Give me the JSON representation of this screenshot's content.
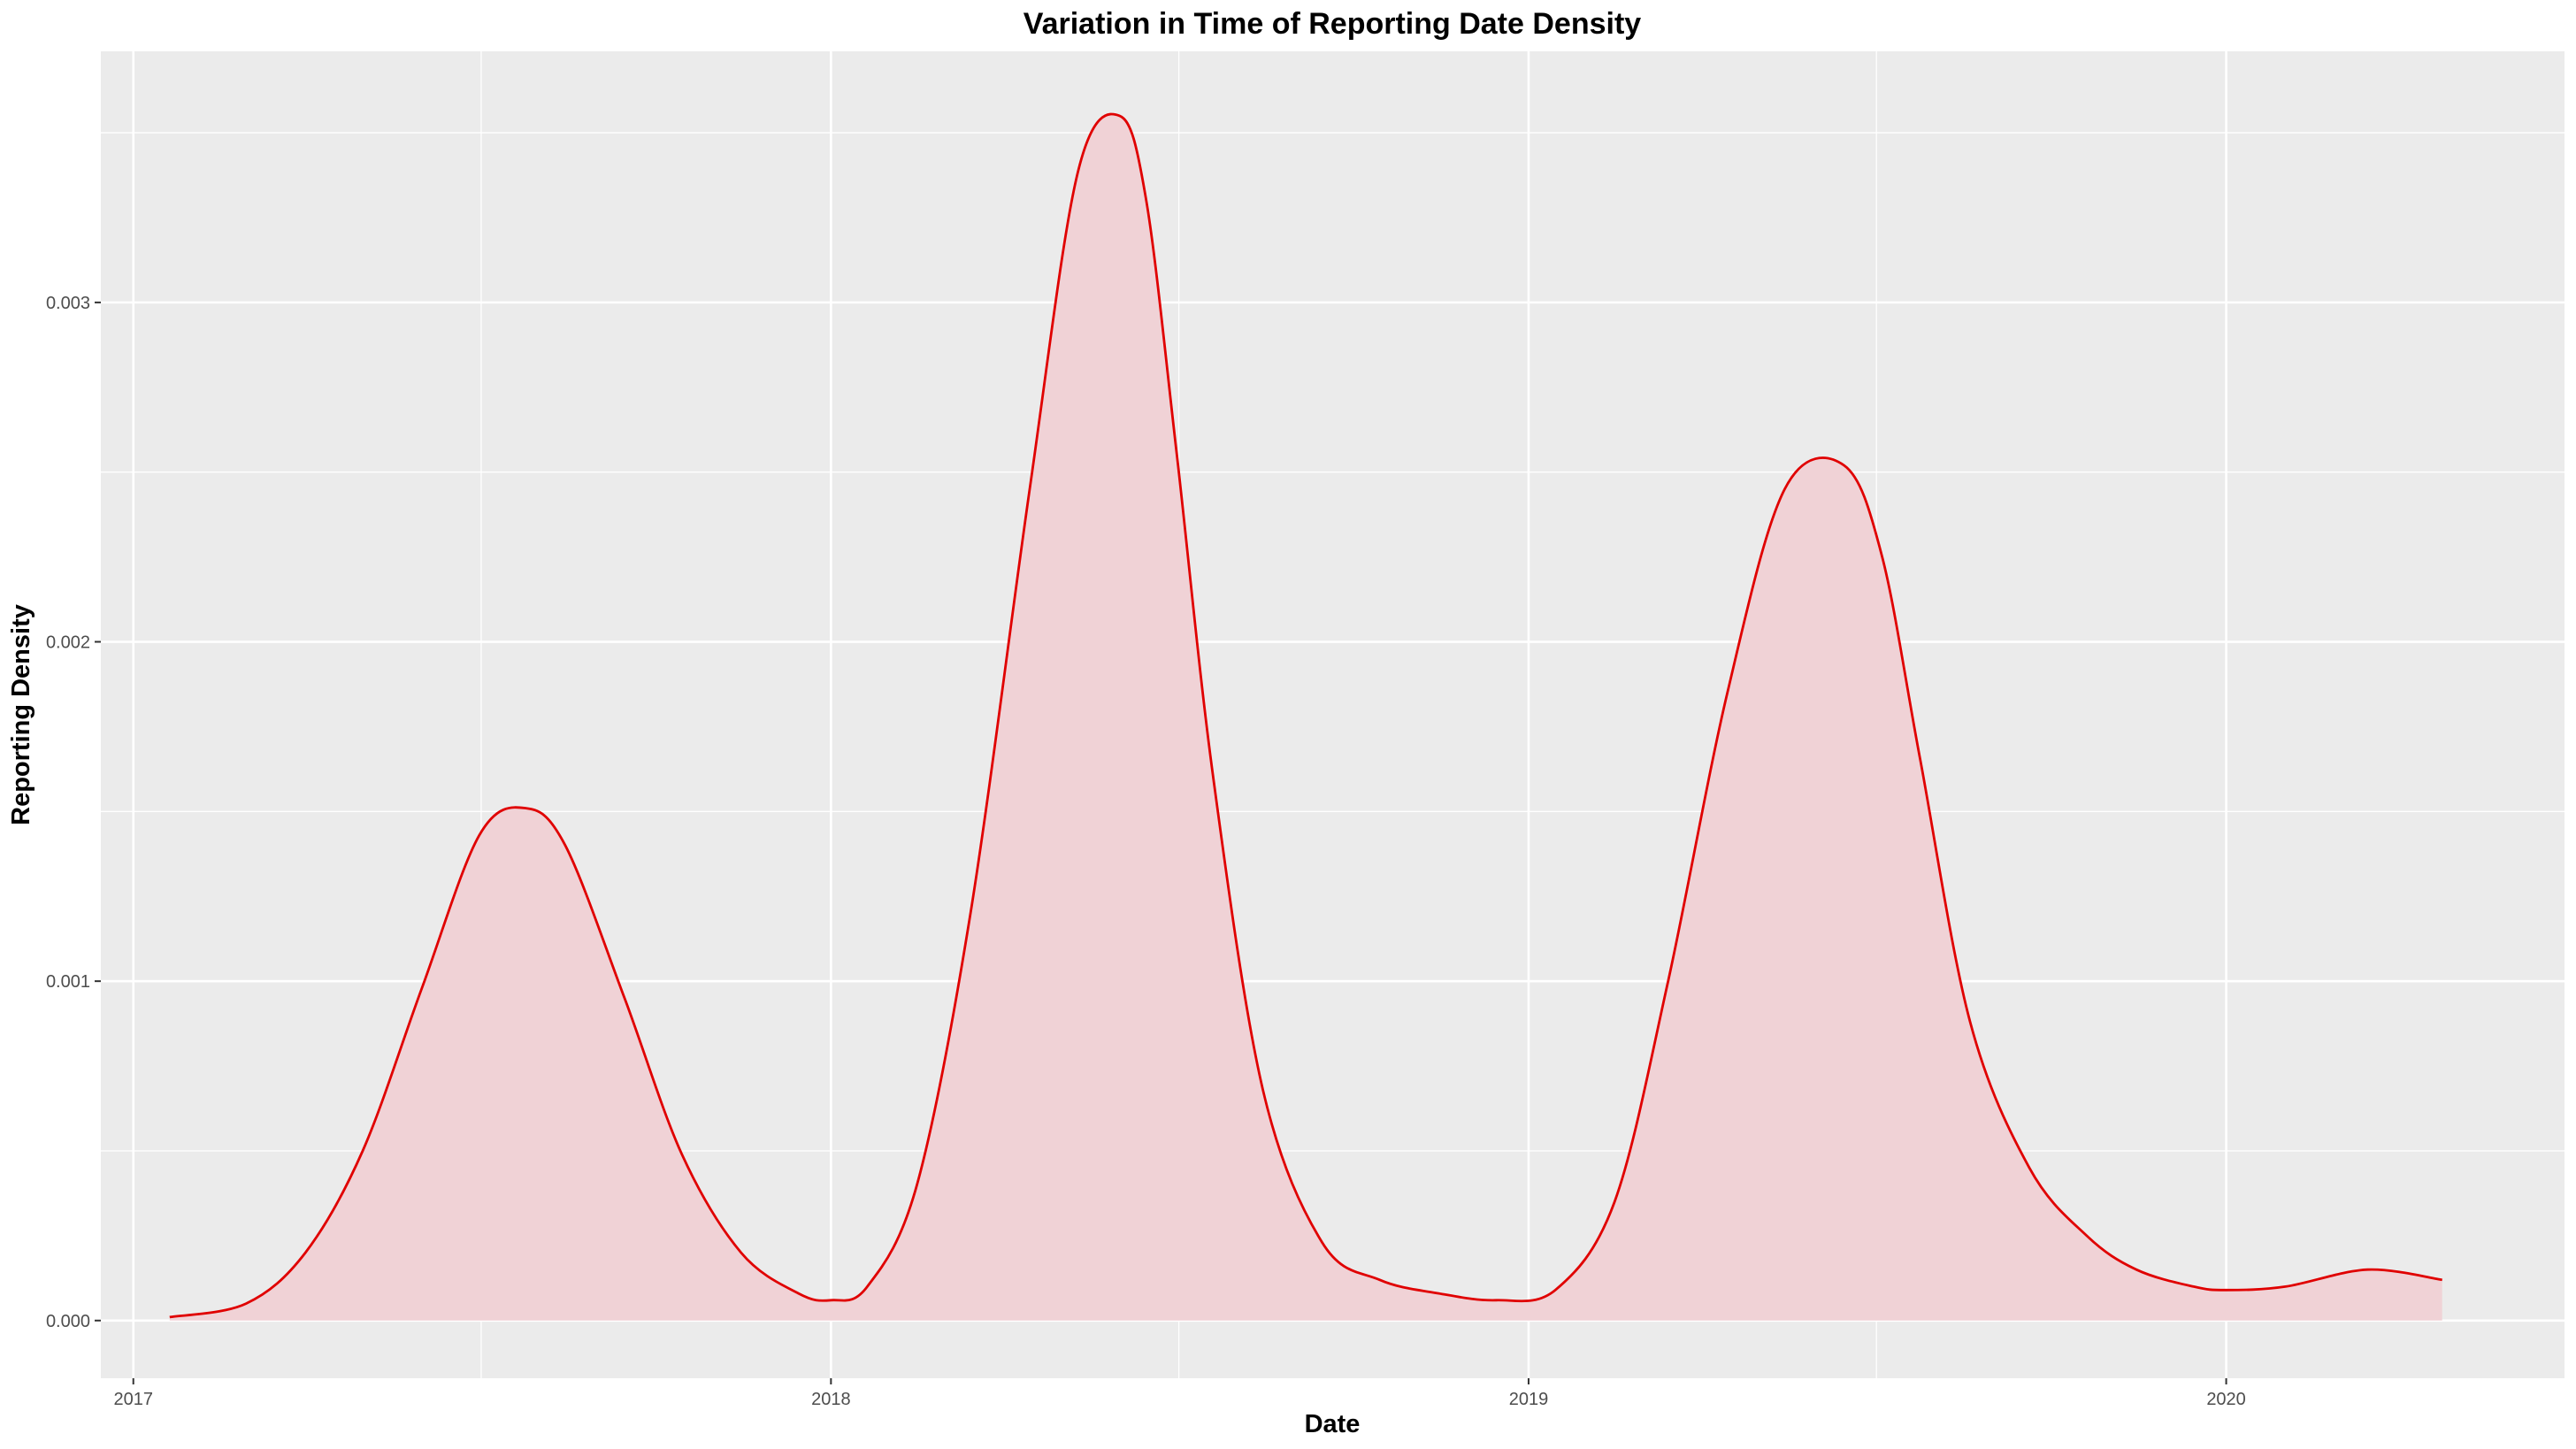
{
  "chart_data": {
    "type": "area",
    "title": "Variation in Time of Reporting Date Density",
    "xlabel": "Date",
    "ylabel": "Reporting Density",
    "x_ticks": [
      "2017",
      "2018",
      "2019",
      "2020"
    ],
    "y_ticks": [
      "0.000",
      "0.001",
      "0.002",
      "0.003"
    ],
    "xlim": [
      "2016-12-15",
      "2020-06-26"
    ],
    "ylim": [
      -0.00017,
      0.00374
    ],
    "grid": true,
    "colors": {
      "line": "#e00000",
      "fill": "#f0d2d6",
      "panel": "#ebebeb",
      "grid": "#ffffff"
    },
    "series": [
      {
        "x": [
          "2017-01-20",
          "2017-03-01",
          "2017-04-01",
          "2017-05-01",
          "2017-06-01",
          "2017-07-01",
          "2017-07-25",
          "2017-08-15",
          "2017-09-15",
          "2017-10-15",
          "2017-11-15",
          "2017-12-15",
          "2018-01-01",
          "2018-01-20",
          "2018-02-15",
          "2018-03-15",
          "2018-04-15",
          "2018-05-10",
          "2018-06-01",
          "2018-06-15",
          "2018-07-01",
          "2018-07-20",
          "2018-08-15",
          "2018-09-15",
          "2018-10-15",
          "2018-11-15",
          "2018-12-15",
          "2019-01-15",
          "2019-02-15",
          "2019-03-15",
          "2019-04-15",
          "2019-05-15",
          "2019-06-15",
          "2019-07-05",
          "2019-07-25",
          "2019-08-20",
          "2019-09-20",
          "2019-10-20",
          "2019-11-15",
          "2019-12-15",
          "2020-01-01",
          "2020-02-01",
          "2020-03-15",
          "2020-04-23"
        ],
        "y": [
          1e-05,
          5e-05,
          0.0002,
          0.0005,
          0.00098,
          0.00143,
          0.00151,
          0.0014,
          0.00095,
          0.00049,
          0.0002,
          8e-05,
          6e-05,
          0.0001,
          0.0004,
          0.0012,
          0.00245,
          0.00338,
          0.00355,
          0.0033,
          0.00255,
          0.0016,
          0.00068,
          0.00023,
          0.00012,
          8e-05,
          6e-05,
          9e-05,
          0.00035,
          0.001,
          0.00185,
          0.00245,
          0.00252,
          0.00225,
          0.00165,
          0.00088,
          0.00045,
          0.00025,
          0.00015,
          0.0001,
          9e-05,
          0.0001,
          0.00015,
          0.00012
        ]
      }
    ]
  }
}
